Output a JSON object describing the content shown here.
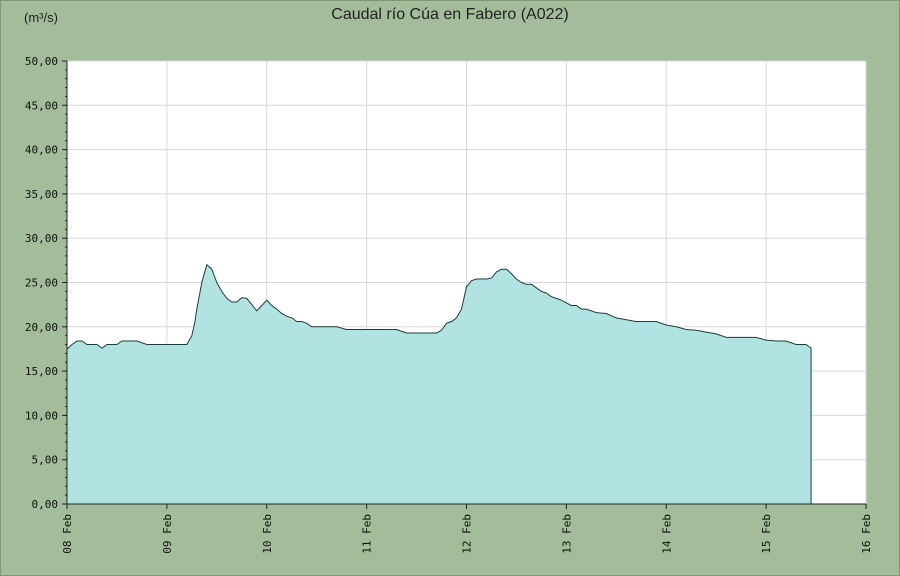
{
  "chart_data": {
    "type": "area",
    "title": "Caudal río Cúa en Fabero  (A022)",
    "ylabel": "(m³/s)",
    "xlabel": "",
    "xlim": [
      0,
      8
    ],
    "ylim": [
      0,
      50
    ],
    "grid": true,
    "y_ticks": [
      "0,00",
      "5,00",
      "10,00",
      "15,00",
      "20,00",
      "25,00",
      "30,00",
      "35,00",
      "40,00",
      "45,00",
      "50,00"
    ],
    "x_ticks": [
      "08 Feb",
      "09 Feb",
      "10 Feb",
      "11 Feb",
      "12 Feb",
      "13 Feb",
      "14 Feb",
      "15 Feb",
      "16 Feb"
    ],
    "colors": {
      "fill": "#b2e3e3",
      "line": "#1d3d3d",
      "plot_bg": "#ffffff",
      "grid": "#d8d8d8",
      "frame_bg": "#a3bd9a"
    },
    "series": [
      {
        "x": [
          0,
          0.05,
          0.1,
          0.15,
          0.2,
          0.25,
          0.3,
          0.35,
          0.4,
          0.45,
          0.5,
          0.55,
          0.6,
          0.65,
          0.7,
          0.8,
          0.9,
          0.95,
          1.0,
          1.1,
          1.2,
          1.25,
          1.28,
          1.3,
          1.35,
          1.4,
          1.45,
          1.48,
          1.5,
          1.55,
          1.6,
          1.65,
          1.7,
          1.75,
          1.8,
          1.85,
          1.9,
          1.95,
          2.0,
          2.05,
          2.1,
          2.15,
          2.2,
          2.25,
          2.3,
          2.35,
          2.4,
          2.45,
          2.5,
          2.6,
          2.7,
          2.8,
          2.9,
          3.0,
          3.1,
          3.2,
          3.3,
          3.4,
          3.45,
          3.5,
          3.6,
          3.7,
          3.75,
          3.8,
          3.85,
          3.9,
          3.95,
          4.0,
          4.05,
          4.1,
          4.15,
          4.2,
          4.25,
          4.3,
          4.35,
          4.4,
          4.45,
          4.5,
          4.55,
          4.6,
          4.65,
          4.7,
          4.75,
          4.8,
          4.85,
          4.9,
          4.95,
          5.0,
          5.05,
          5.1,
          5.15,
          5.2,
          5.3,
          5.4,
          5.5,
          5.6,
          5.7,
          5.8,
          5.9,
          6.0,
          6.1,
          6.2,
          6.3,
          6.4,
          6.5,
          6.6,
          6.7,
          6.8,
          6.9,
          7.0,
          7.1,
          7.2,
          7.3,
          7.4,
          7.45
        ],
        "y": [
          17.5,
          18.0,
          18.4,
          18.4,
          18.0,
          18.0,
          18.0,
          17.6,
          18.0,
          18.0,
          18.0,
          18.4,
          18.4,
          18.4,
          18.4,
          18.0,
          18.0,
          18.0,
          18.0,
          18.0,
          18.0,
          19.0,
          20.5,
          22.0,
          25.0,
          27.0,
          26.5,
          25.6,
          25.0,
          24.0,
          23.2,
          22.8,
          22.8,
          23.3,
          23.2,
          22.5,
          21.8,
          22.4,
          23.0,
          22.4,
          22.0,
          21.5,
          21.2,
          21.0,
          20.6,
          20.6,
          20.4,
          20.0,
          20.0,
          20.0,
          20.0,
          19.7,
          19.7,
          19.7,
          19.7,
          19.7,
          19.7,
          19.3,
          19.3,
          19.3,
          19.3,
          19.3,
          19.6,
          20.4,
          20.6,
          21.0,
          22.0,
          24.5,
          25.2,
          25.4,
          25.4,
          25.4,
          25.5,
          26.2,
          26.5,
          26.5,
          26.0,
          25.4,
          25.0,
          24.8,
          24.8,
          24.4,
          24.0,
          23.8,
          23.4,
          23.2,
          23.0,
          22.7,
          22.4,
          22.4,
          22.0,
          22.0,
          21.6,
          21.5,
          21.0,
          20.8,
          20.6,
          20.6,
          20.6,
          20.2,
          20.0,
          19.7,
          19.6,
          19.4,
          19.2,
          18.8,
          18.8,
          18.8,
          18.8,
          18.5,
          18.4,
          18.4,
          18.0,
          18.0,
          17.6
        ]
      }
    ]
  }
}
